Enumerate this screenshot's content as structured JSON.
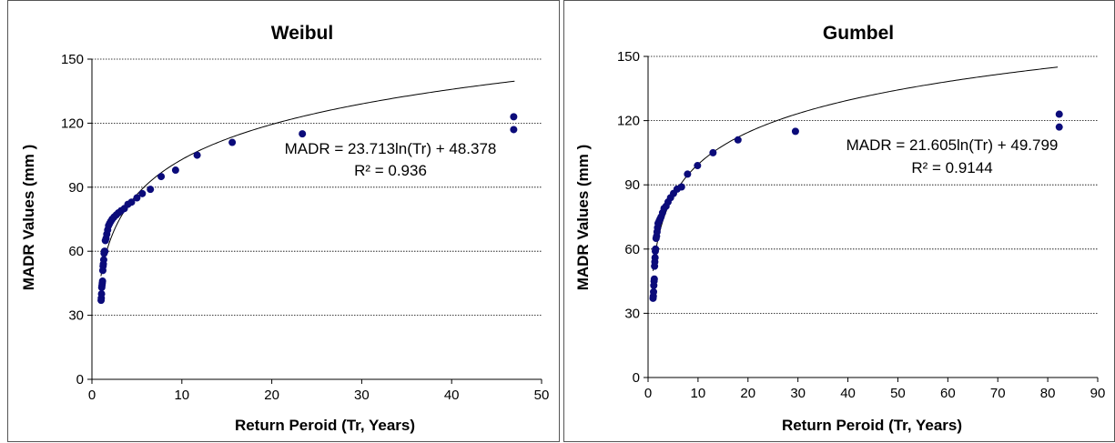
{
  "chart_data": [
    {
      "type": "scatter",
      "title": "Weibul",
      "xlabel": "Return Peroid (Tr, Years)",
      "ylabel": "MADR Values (mm )",
      "xlim": [
        0,
        50
      ],
      "ylim": [
        0,
        150
      ],
      "xticks": [
        "0",
        "10",
        "20",
        "30",
        "40",
        "50"
      ],
      "yticks": [
        "0",
        "30",
        "60",
        "90",
        "120",
        "150"
      ],
      "grid": "horizontal dotted",
      "colors": {
        "points": "#0b0b7a",
        "trend": "#000000",
        "grid": "#000000"
      },
      "series": [
        {
          "x": [
            1.02,
            1.04,
            1.07,
            1.09,
            1.12,
            1.15,
            1.18,
            1.21,
            1.24,
            1.27,
            1.31,
            1.35,
            1.39,
            1.44,
            1.49,
            1.57,
            1.65,
            1.75,
            1.85,
            1.96,
            2.1,
            2.25,
            2.45,
            2.7,
            2.95,
            3.25,
            3.6,
            4.0,
            4.4,
            5.0,
            5.6,
            6.5,
            7.7,
            9.3,
            11.7,
            15.6,
            23.4,
            46.9
          ],
          "y": [
            37,
            38,
            40,
            43,
            44,
            45,
            46,
            51,
            53,
            54,
            56,
            59,
            60,
            60,
            65,
            66,
            68,
            70,
            72,
            73,
            74,
            75,
            76,
            77,
            78,
            79,
            80,
            82,
            83,
            85,
            87,
            89,
            95,
            98,
            105,
            111,
            115,
            117
          ],
          "note_last": [
            46.9,
            123
          ]
        }
      ],
      "trendline": {
        "type": "log",
        "a": 23.713,
        "b": 48.378,
        "x_range": [
          1,
          47
        ]
      },
      "equation_lines": [
        "MADR = 23.713ln(Tr) + 48.378",
        "R² = 0.936"
      ]
    },
    {
      "type": "scatter",
      "title": "Gumbel",
      "xlabel": "Return Peroid (Tr, Years)",
      "ylabel": "MADR Values (mm )",
      "xlim": [
        0,
        90
      ],
      "ylim": [
        0,
        150
      ],
      "xticks": [
        "0",
        "10",
        "20",
        "30",
        "40",
        "50",
        "60",
        "70",
        "80",
        "90"
      ],
      "yticks": [
        "0",
        "30",
        "60",
        "90",
        "120",
        "150"
      ],
      "grid": "horizontal dotted",
      "colors": {
        "points": "#0b0b7a",
        "trend": "#000000",
        "grid": "#000000"
      },
      "series": [
        {
          "x": [
            1.0,
            1.05,
            1.1,
            1.15,
            1.2,
            1.25,
            1.3,
            1.35,
            1.4,
            1.45,
            1.5,
            1.6,
            1.7,
            1.8,
            1.9,
            2.0,
            2.2,
            2.4,
            2.6,
            2.9,
            3.2,
            3.6,
            4.0,
            4.5,
            5.1,
            5.8,
            6.7,
            7.9,
            9.9,
            13.0,
            18.0,
            29.5,
            82.3
          ],
          "y": [
            37,
            38,
            40,
            43,
            45,
            46,
            52,
            54,
            56,
            59,
            60,
            65,
            66,
            68,
            70,
            72,
            73,
            74,
            75,
            77,
            79,
            80,
            82,
            84,
            86,
            88,
            89,
            95,
            99,
            105,
            111,
            115,
            117
          ],
          "note_last": [
            82.3,
            123
          ]
        }
      ],
      "trendline": {
        "type": "log",
        "a": 21.605,
        "b": 49.799,
        "x_range": [
          1,
          82
        ]
      },
      "equation_lines": [
        "MADR = 21.605ln(Tr) + 49.799",
        "R² = 0.9144"
      ]
    }
  ]
}
